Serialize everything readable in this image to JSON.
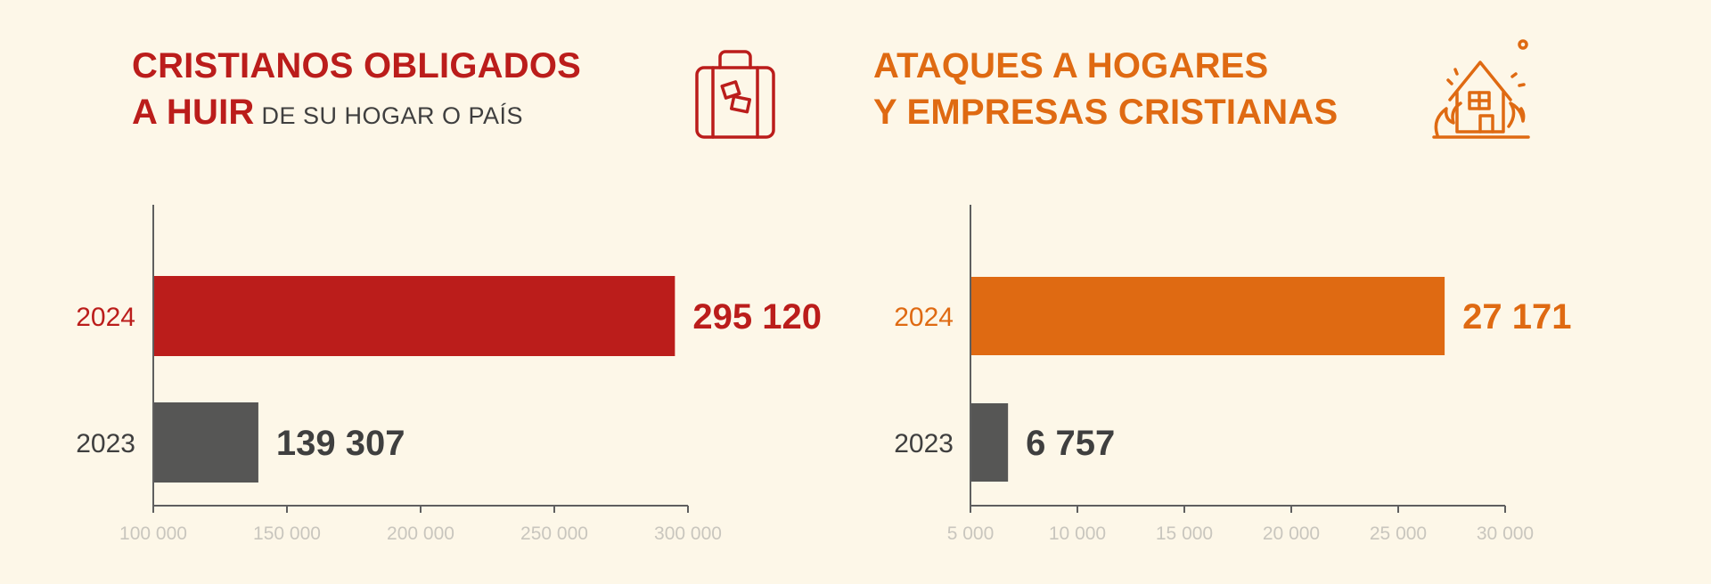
{
  "colors": {
    "background": "#fdf7e8",
    "red": "#bb1d1b",
    "orange": "#df6a12",
    "gray": "#565655",
    "axis": "#5f5f5f",
    "tick_text": "#c9c6be",
    "text_dark": "#3f3f3f"
  },
  "left": {
    "title_line1": "CRISTIANOS OBLIGADOS",
    "title_line2": "A HUIR",
    "title_sub": "DE SU HOGAR O PAÍS",
    "icon": "suitcase-icon"
  },
  "right": {
    "title_line1": "ATAQUES A HOGARES",
    "title_line2": "Y EMPRESAS CRISTIANAS",
    "icon": "burning-house-icon"
  },
  "chart_data": [
    {
      "type": "bar",
      "orientation": "horizontal",
      "title": "CRISTIANOS OBLIGADOS A HUIR DE SU HOGAR O PAÍS",
      "categories": [
        "2024",
        "2023"
      ],
      "values": [
        295120,
        139307
      ],
      "value_labels": [
        "295 120",
        "139 307"
      ],
      "bar_colors": [
        "#bb1d1b",
        "#565655"
      ],
      "xlim": [
        100000,
        300000
      ],
      "xticks": [
        100000,
        150000,
        200000,
        250000,
        300000
      ],
      "xtick_labels": [
        "100 000",
        "150 000",
        "200 000",
        "250 000",
        "300 000"
      ]
    },
    {
      "type": "bar",
      "orientation": "horizontal",
      "title": "ATAQUES A HOGARES Y EMPRESAS CRISTIANAS",
      "categories": [
        "2024",
        "2023"
      ],
      "values": [
        27171,
        6757
      ],
      "value_labels": [
        "27 171",
        "6 757"
      ],
      "bar_colors": [
        "#df6a12",
        "#565655"
      ],
      "xlim": [
        5000,
        30000
      ],
      "xticks": [
        5000,
        10000,
        15000,
        20000,
        25000,
        30000
      ],
      "xtick_labels": [
        "5 000",
        "10 000",
        "15 000",
        "20 000",
        "25 000",
        "30 000"
      ]
    }
  ]
}
